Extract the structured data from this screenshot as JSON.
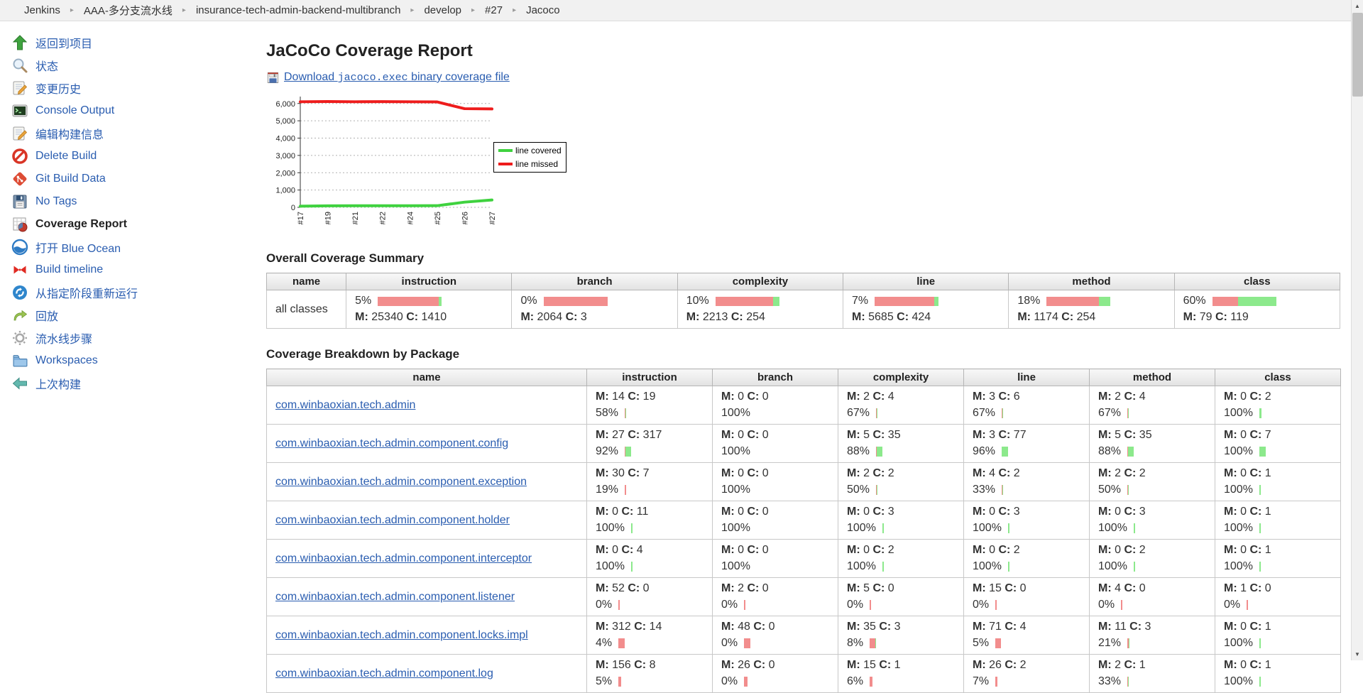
{
  "breadcrumb": {
    "items": [
      "Jenkins",
      "AAA-多分支流水线",
      "insurance-tech-admin-backend-multibranch",
      "develop",
      "#27",
      "Jacoco"
    ]
  },
  "sidebar": {
    "items": [
      {
        "id": "back-to-project",
        "label": "返回到项目",
        "icon": "up-arrow-icon",
        "current": false
      },
      {
        "id": "status",
        "label": "状态",
        "icon": "search-icon",
        "current": false
      },
      {
        "id": "changes",
        "label": "变更历史",
        "icon": "notepad-icon",
        "current": false
      },
      {
        "id": "console-output",
        "label": "Console Output",
        "icon": "terminal-icon",
        "current": false
      },
      {
        "id": "edit-build-information",
        "label": "编辑构建信息",
        "icon": "notepad-icon",
        "current": false
      },
      {
        "id": "delete-build",
        "label": "Delete Build",
        "icon": "forbidden-icon",
        "current": false
      },
      {
        "id": "git-build-data",
        "label": "Git Build Data",
        "icon": "git-icon",
        "current": false
      },
      {
        "id": "no-tags",
        "label": "No Tags",
        "icon": "floppy-icon",
        "current": false
      },
      {
        "id": "coverage-report",
        "label": "Coverage Report",
        "icon": "coverage-icon",
        "current": true
      },
      {
        "id": "open-blue-ocean",
        "label": "打开 Blue Ocean",
        "icon": "blue-ocean-icon",
        "current": false
      },
      {
        "id": "build-timeline",
        "label": "Build timeline",
        "icon": "bowtie-icon",
        "current": false
      },
      {
        "id": "restart-from-stage",
        "label": "从指定阶段重新运行",
        "icon": "restart-icon",
        "current": false
      },
      {
        "id": "replay",
        "label": "回放",
        "icon": "replay-icon",
        "current": false
      },
      {
        "id": "pipeline-steps",
        "label": "流水线步骤",
        "icon": "gear-icon",
        "current": false
      },
      {
        "id": "workspaces",
        "label": "Workspaces",
        "icon": "folder-icon",
        "current": false
      },
      {
        "id": "previous-build",
        "label": "上次构建",
        "icon": "left-arrow-icon",
        "current": false
      }
    ]
  },
  "main": {
    "title": "JaCoCo Coverage Report",
    "download": {
      "prefix": "Download ",
      "file": "jacoco.exec",
      "suffix": " binary coverage file"
    },
    "summary_heading": "Overall Coverage Summary",
    "breakdown_heading": "Coverage Breakdown by Package"
  },
  "colors": {
    "covered_green": "#8ce98c",
    "missed_red": "#f28d8d",
    "chart_covered": "#3fd23f",
    "chart_missed": "#ee1c1c",
    "link_blue": "#2a5db0"
  },
  "chart_data": {
    "type": "line",
    "x": [
      "#17",
      "#19",
      "#21",
      "#22",
      "#24",
      "#25",
      "#26",
      "#27"
    ],
    "series": [
      {
        "name": "line covered",
        "color": "#3fd23f",
        "values": [
          65,
          85,
          90,
          90,
          90,
          95,
          300,
          424
        ]
      },
      {
        "name": "line missed",
        "color": "#ee1c1c",
        "values": [
          6100,
          6115,
          6100,
          6110,
          6100,
          6090,
          5700,
          5685
        ]
      }
    ],
    "ylim": [
      0,
      6400
    ],
    "yticks": [
      0,
      1000,
      2000,
      3000,
      4000,
      5000,
      6000
    ],
    "grid": true,
    "legend_position": "right"
  },
  "summary_table": {
    "headers": [
      "name",
      "instruction",
      "branch",
      "complexity",
      "line",
      "method",
      "class"
    ],
    "row_name": "all classes",
    "cells": [
      {
        "pct": 5,
        "m": 25340,
        "c": 1410
      },
      {
        "pct": 0,
        "m": 2064,
        "c": 3
      },
      {
        "pct": 10,
        "m": 2213,
        "c": 254
      },
      {
        "pct": 7,
        "m": 5685,
        "c": 424
      },
      {
        "pct": 18,
        "m": 1174,
        "c": 254
      },
      {
        "pct": 60,
        "m": 79,
        "c": 119
      }
    ]
  },
  "breakdown_table": {
    "headers": [
      "name",
      "instruction",
      "branch",
      "complexity",
      "line",
      "method",
      "class"
    ],
    "rows": [
      {
        "name": "com.winbaoxian.tech.admin",
        "cells": [
          {
            "m": 14,
            "c": 19,
            "pct": 58
          },
          {
            "m": 0,
            "c": 0,
            "pct": 100
          },
          {
            "m": 2,
            "c": 4,
            "pct": 67
          },
          {
            "m": 3,
            "c": 6,
            "pct": 67
          },
          {
            "m": 2,
            "c": 4,
            "pct": 67
          },
          {
            "m": 0,
            "c": 2,
            "pct": 100
          }
        ]
      },
      {
        "name": "com.winbaoxian.tech.admin.component.config",
        "cells": [
          {
            "m": 27,
            "c": 317,
            "pct": 92
          },
          {
            "m": 0,
            "c": 0,
            "pct": 100
          },
          {
            "m": 5,
            "c": 35,
            "pct": 88
          },
          {
            "m": 3,
            "c": 77,
            "pct": 96
          },
          {
            "m": 5,
            "c": 35,
            "pct": 88
          },
          {
            "m": 0,
            "c": 7,
            "pct": 100
          }
        ]
      },
      {
        "name": "com.winbaoxian.tech.admin.component.exception",
        "cells": [
          {
            "m": 30,
            "c": 7,
            "pct": 19
          },
          {
            "m": 0,
            "c": 0,
            "pct": 100
          },
          {
            "m": 2,
            "c": 2,
            "pct": 50
          },
          {
            "m": 4,
            "c": 2,
            "pct": 33
          },
          {
            "m": 2,
            "c": 2,
            "pct": 50
          },
          {
            "m": 0,
            "c": 1,
            "pct": 100
          }
        ]
      },
      {
        "name": "com.winbaoxian.tech.admin.component.holder",
        "cells": [
          {
            "m": 0,
            "c": 11,
            "pct": 100
          },
          {
            "m": 0,
            "c": 0,
            "pct": 100
          },
          {
            "m": 0,
            "c": 3,
            "pct": 100
          },
          {
            "m": 0,
            "c": 3,
            "pct": 100
          },
          {
            "m": 0,
            "c": 3,
            "pct": 100
          },
          {
            "m": 0,
            "c": 1,
            "pct": 100
          }
        ]
      },
      {
        "name": "com.winbaoxian.tech.admin.component.interceptor",
        "cells": [
          {
            "m": 0,
            "c": 4,
            "pct": 100
          },
          {
            "m": 0,
            "c": 0,
            "pct": 100
          },
          {
            "m": 0,
            "c": 2,
            "pct": 100
          },
          {
            "m": 0,
            "c": 2,
            "pct": 100
          },
          {
            "m": 0,
            "c": 2,
            "pct": 100
          },
          {
            "m": 0,
            "c": 1,
            "pct": 100
          }
        ]
      },
      {
        "name": "com.winbaoxian.tech.admin.component.listener",
        "cells": [
          {
            "m": 52,
            "c": 0,
            "pct": 0
          },
          {
            "m": 2,
            "c": 0,
            "pct": 0
          },
          {
            "m": 5,
            "c": 0,
            "pct": 0
          },
          {
            "m": 15,
            "c": 0,
            "pct": 0
          },
          {
            "m": 4,
            "c": 0,
            "pct": 0
          },
          {
            "m": 1,
            "c": 0,
            "pct": 0
          }
        ]
      },
      {
        "name": "com.winbaoxian.tech.admin.component.locks.impl",
        "cells": [
          {
            "m": 312,
            "c": 14,
            "pct": 4
          },
          {
            "m": 48,
            "c": 0,
            "pct": 0
          },
          {
            "m": 35,
            "c": 3,
            "pct": 8
          },
          {
            "m": 71,
            "c": 4,
            "pct": 5
          },
          {
            "m": 11,
            "c": 3,
            "pct": 21
          },
          {
            "m": 0,
            "c": 1,
            "pct": 100
          }
        ]
      },
      {
        "name": "com.winbaoxian.tech.admin.component.log",
        "cells": [
          {
            "m": 156,
            "c": 8,
            "pct": 5
          },
          {
            "m": 26,
            "c": 0,
            "pct": 0
          },
          {
            "m": 15,
            "c": 1,
            "pct": 6
          },
          {
            "m": 26,
            "c": 2,
            "pct": 7
          },
          {
            "m": 2,
            "c": 1,
            "pct": 33
          },
          {
            "m": 0,
            "c": 1,
            "pct": 100
          }
        ]
      }
    ]
  },
  "scrollbar": {
    "up_glyph": "▲",
    "down_glyph": "▼"
  }
}
